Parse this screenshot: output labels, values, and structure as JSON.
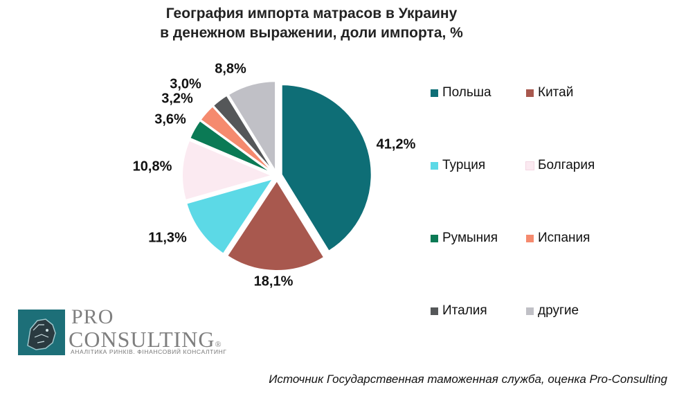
{
  "title_line1": "География импорта матрасов в Украину",
  "title_line2": "в денежном выражении, доли импорта, %",
  "chart_data": {
    "type": "pie",
    "title": "География импорта матрасов в Украину в денежном выражении, доли импорта, %",
    "categories": [
      "Польша",
      "Китай",
      "Турция",
      "Болгария",
      "Румыния",
      "Испания",
      "Италия",
      "другие"
    ],
    "values": [
      41.2,
      18.1,
      11.3,
      10.8,
      3.6,
      3.2,
      3.0,
      8.8
    ],
    "data_labels": [
      "41,2%",
      "18,1%",
      "11,3%",
      "10,8%",
      "3,6%",
      "3,2%",
      "3,0%",
      "8,8%"
    ],
    "colors": [
      "#0e6e76",
      "#a8584e",
      "#5cd9e6",
      "#fbeaf1",
      "#0b7a55",
      "#f58a6e",
      "#555759",
      "#c0c0c6"
    ],
    "exploded": true,
    "legend_position": "right"
  },
  "source": "Источник Государственная таможенная служба, оценка Pro-Consulting",
  "logo": {
    "pro": "PRO",
    "consulting": "CONSULTING",
    "registered": "®",
    "tagline": "АНАЛІТИКА РИНКІВ. ФІНАНСОВИЙ КОНСАЛТИНГ"
  }
}
